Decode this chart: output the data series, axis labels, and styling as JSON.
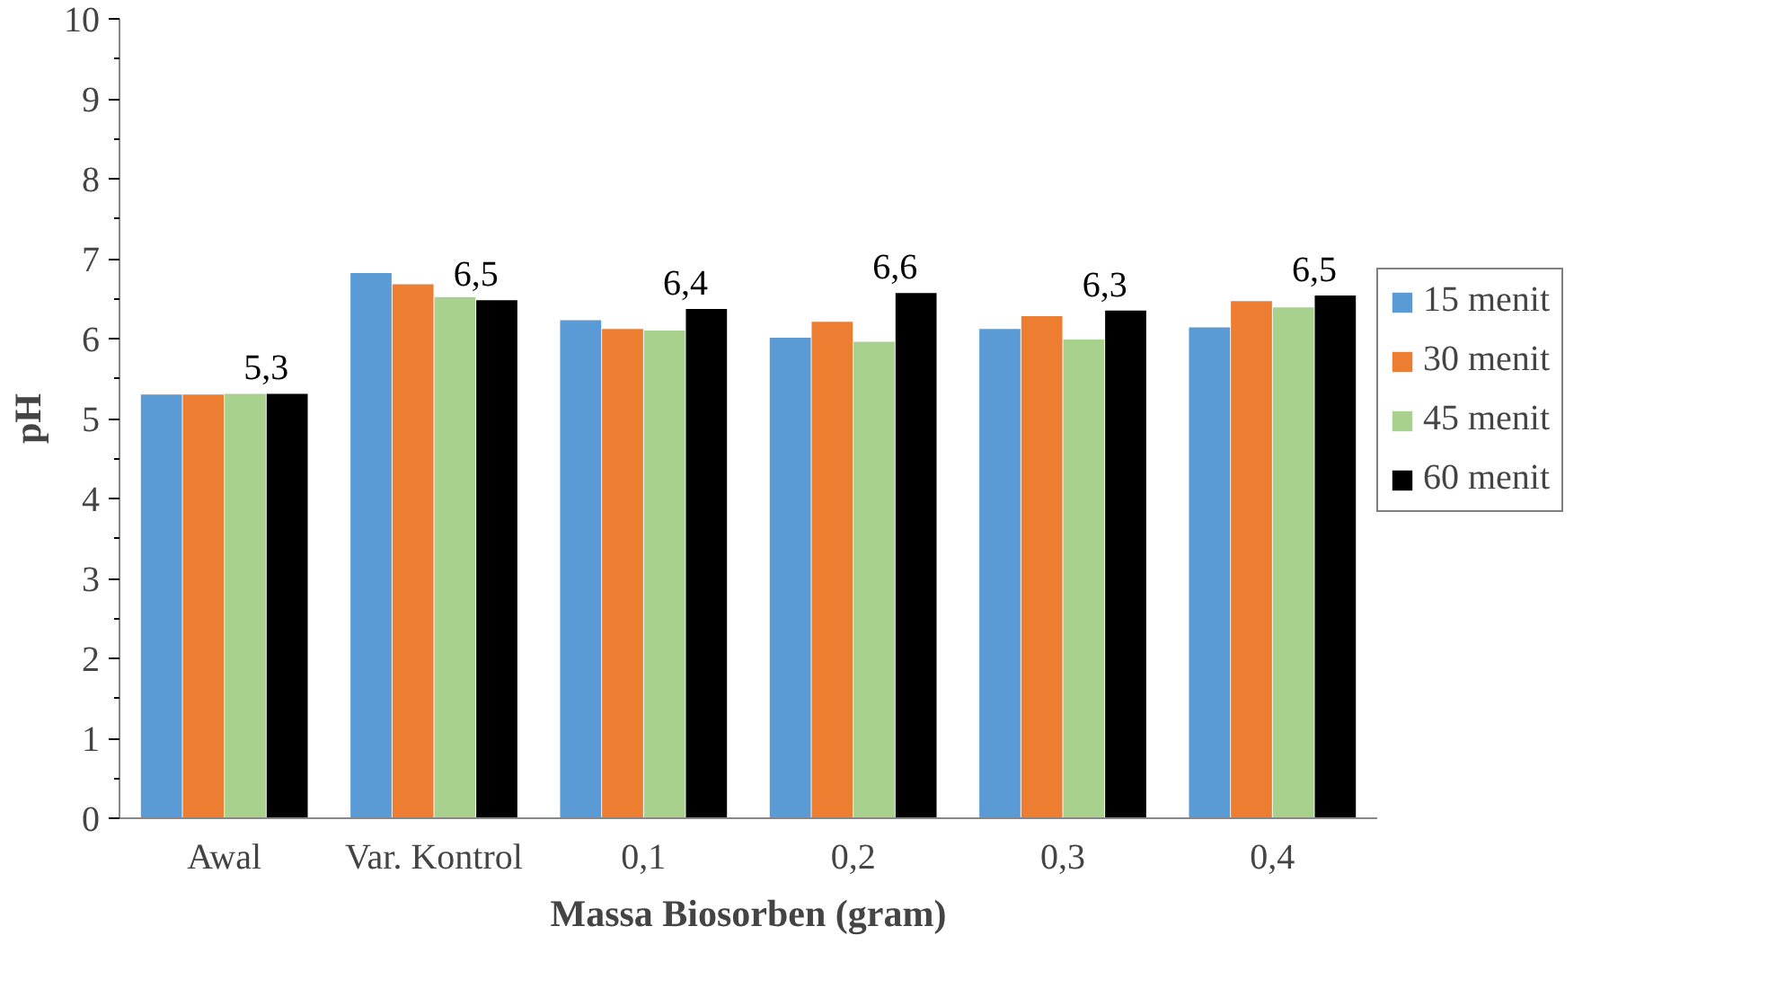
{
  "chart_data": {
    "type": "bar",
    "xlabel": "Massa Biosorben (gram)",
    "ylabel": "pH",
    "categories": [
      "Awal",
      "Var. Kontrol",
      "0,1",
      "0,2",
      "0,3",
      "0,4"
    ],
    "series": [
      {
        "name": "15 menit",
        "color": "#5b9bd5",
        "values": [
          5.3,
          6.82,
          6.23,
          6.01,
          6.12,
          6.14
        ]
      },
      {
        "name": "30 menit",
        "color": "#ed7d31",
        "values": [
          5.3,
          6.68,
          6.12,
          6.21,
          6.28,
          6.47
        ]
      },
      {
        "name": "45 menit",
        "color": "#a9d18e",
        "values": [
          5.31,
          6.52,
          6.1,
          5.96,
          5.99,
          6.39
        ]
      },
      {
        "name": "60 menit",
        "color": "#000000",
        "values": [
          5.31,
          6.48,
          6.37,
          6.57,
          6.35,
          6.54
        ],
        "value_labels": [
          "5,3",
          "6,5",
          "6,4",
          "6,6",
          "6,3",
          "6,5"
        ]
      }
    ],
    "ylim": [
      0,
      10
    ],
    "yticks": [
      0,
      1,
      2,
      3,
      4,
      5,
      6,
      7,
      8,
      9,
      10
    ],
    "grid": false,
    "legend": "right"
  }
}
